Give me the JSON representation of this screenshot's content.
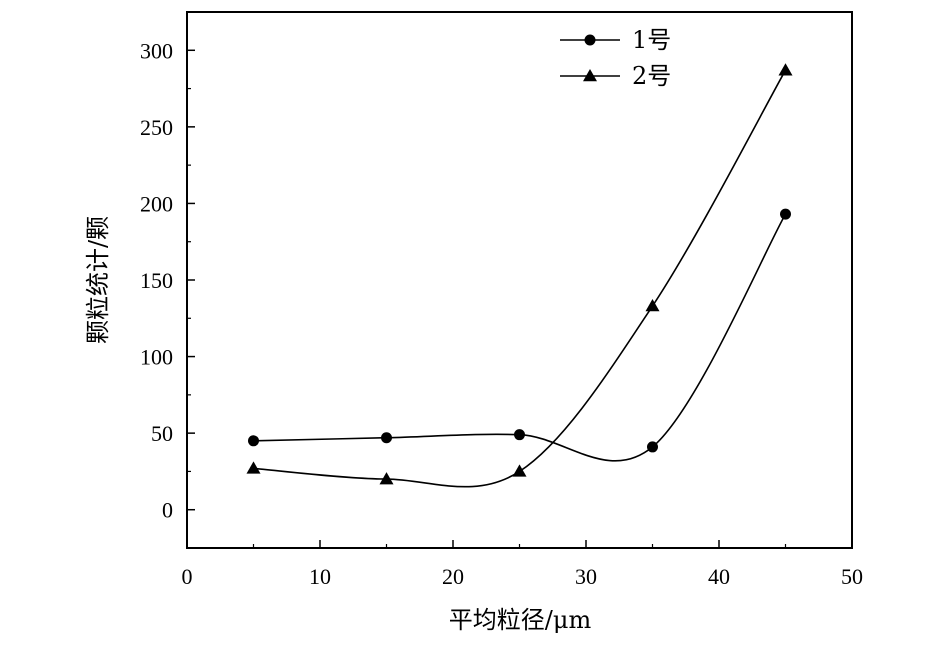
{
  "chart_data": {
    "type": "line",
    "smooth": true,
    "xlabel": "平均粒径/μm",
    "ylabel": "颗粒统计/颗",
    "xlim": [
      0,
      50
    ],
    "ylim": [
      -25,
      325
    ],
    "xticks": [
      0,
      10,
      20,
      30,
      40,
      50
    ],
    "yticks": [
      0,
      50,
      100,
      150,
      200,
      250,
      300
    ],
    "grid": false,
    "legend_position": "top-center",
    "x": [
      5,
      15,
      25,
      35,
      45
    ],
    "series": [
      {
        "name": "1号",
        "marker": "circle",
        "values": [
          45,
          47,
          49,
          41,
          193
        ]
      },
      {
        "name": "2号",
        "marker": "triangle",
        "values": [
          27,
          20,
          25,
          133,
          287
        ]
      }
    ]
  }
}
